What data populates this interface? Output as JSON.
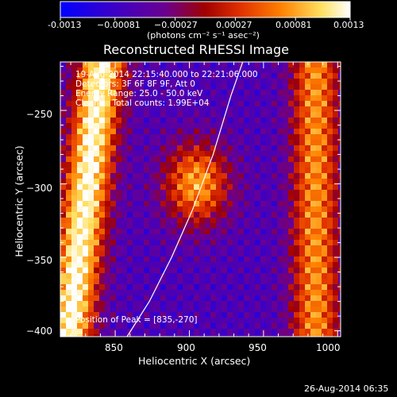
{
  "colorbar": {
    "ticks": [
      "-0.0013",
      "−0.00081",
      "−0.00027",
      "0.00027",
      "0.00081",
      "0.0013"
    ],
    "units": "(photons cm⁻² s⁻¹ asec⁻²)",
    "range": [
      -0.0013,
      0.0013
    ]
  },
  "chart_data": {
    "type": "heatmap",
    "title": "Reconstructed RHESSI Image",
    "xlabel": "Heliocentric X (arcsec)",
    "ylabel": "Heliocentric Y (arcsec)",
    "xlim": [
      813,
      1002
    ],
    "ylim": [
      -404,
      -217
    ],
    "x_ticks": [
      850,
      900,
      950,
      1000
    ],
    "y_ticks": [
      -250,
      -300,
      -350,
      -400
    ],
    "x_tick_labels": [
      "850",
      "900",
      "950",
      "1000"
    ],
    "y_tick_labels": [
      "−250",
      "−300",
      "−350",
      "−400"
    ],
    "peak": [
      835,
      -270
    ],
    "limb_curve": [
      [
        858,
        -404
      ],
      [
        873,
        -380
      ],
      [
        888,
        -350
      ],
      [
        902,
        -318
      ],
      [
        916,
        -280
      ],
      [
        928,
        -240
      ],
      [
        936,
        -217
      ]
    ],
    "annotations": [
      "19-Aug-2014 22:15:40.000 to 22:21:06.000",
      "Detectors: 3F 6F 8F 9F, Att 0",
      "Energy Range: 25.0 - 50.0 keV",
      "Clean     Total counts: 1.99E+04"
    ],
    "peak_label": "Position of Peak = [835,-270]"
  },
  "footer": {
    "timestamp": "26-Aug-2014 06:35"
  }
}
